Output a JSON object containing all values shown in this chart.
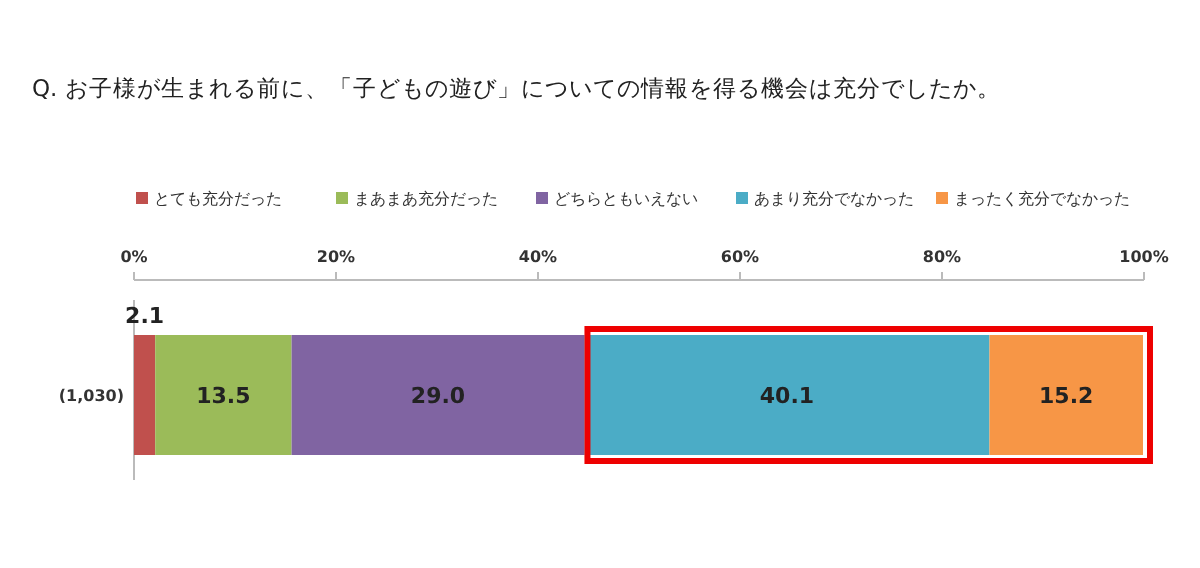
{
  "chart_data": {
    "type": "bar",
    "orientation": "horizontal",
    "stacked": true,
    "title": "Q. お子様が生まれる前に、「子どもの遊び」についての情報を得る機会は充分でしたか。",
    "categories": [
      "(1,030)"
    ],
    "series": [
      {
        "name": "とても充分だった",
        "color": "#c0504d",
        "values": [
          2.1
        ]
      },
      {
        "name": "まあまあ充分だった",
        "color": "#9bbb59",
        "values": [
          13.5
        ]
      },
      {
        "name": "どちらともいえない",
        "color": "#8064a2",
        "values": [
          29.0
        ]
      },
      {
        "name": "あまり充分でなかった",
        "color": "#4bacc6",
        "values": [
          40.1
        ]
      },
      {
        "name": "まったく充分でなかった",
        "color": "#f79646",
        "values": [
          15.2
        ]
      }
    ],
    "value_labels": [
      "2.1",
      "13.5",
      "29.0",
      "40.1",
      "15.2"
    ],
    "xlim": [
      0,
      100
    ],
    "xticks": [
      {
        "value": 0,
        "label": "0%"
      },
      {
        "value": 20,
        "label": "20%"
      },
      {
        "value": 40,
        "label": "40%"
      },
      {
        "value": 60,
        "label": "60%"
      },
      {
        "value": 80,
        "label": "80%"
      },
      {
        "value": 100,
        "label": "100%"
      }
    ],
    "legend": "top",
    "grid": false
  }
}
